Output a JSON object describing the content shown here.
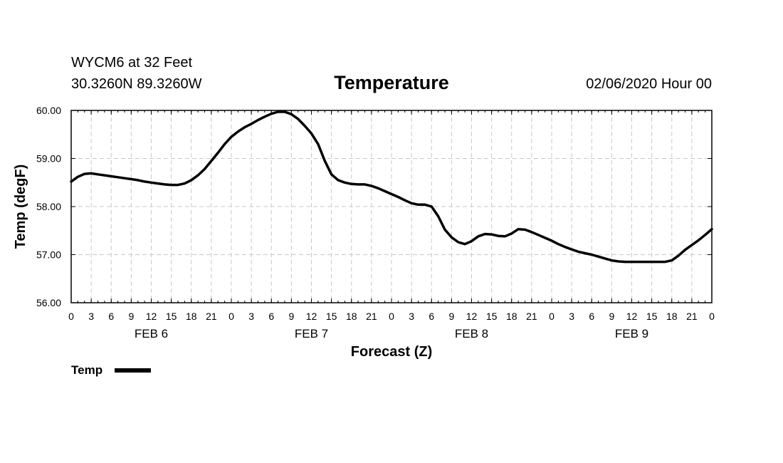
{
  "header": {
    "station": "WYCM6 at 32 Feet",
    "coords": "30.3260N 89.3260W",
    "title": "Temperature",
    "run": "02/06/2020 Hour 00"
  },
  "chart_data": {
    "type": "line",
    "title": "Temperature",
    "xlabel": "Forecast (Z)",
    "ylabel": "Temp (degF)",
    "ylim": [
      56.0,
      60.0
    ],
    "xlim": [
      0,
      96
    ],
    "grid": true,
    "y_ticks": [
      "56.00",
      "57.00",
      "58.00",
      "59.00",
      "60.00"
    ],
    "x_tick_labels": [
      "0",
      "3",
      "6",
      "9",
      "12",
      "15",
      "18",
      "21",
      "0",
      "3",
      "6",
      "9",
      "12",
      "15",
      "18",
      "21",
      "0",
      "3",
      "6",
      "9",
      "12",
      "15",
      "18",
      "21",
      "0",
      "3",
      "6",
      "9",
      "12",
      "15",
      "18",
      "21",
      "0"
    ],
    "date_labels": [
      {
        "hour": 12,
        "label": "FEB 6"
      },
      {
        "hour": 36,
        "label": "FEB 7"
      },
      {
        "hour": 60,
        "label": "FEB 8"
      },
      {
        "hour": 84,
        "label": "FEB 9"
      }
    ],
    "legend": {
      "label": "Temp",
      "placement": "bottom-left"
    },
    "series": [
      {
        "name": "Temp",
        "color": "#000000",
        "x": [
          0,
          1,
          2,
          3,
          4,
          5,
          6,
          7,
          8,
          9,
          10,
          11,
          12,
          13,
          14,
          15,
          16,
          17,
          18,
          19,
          20,
          21,
          22,
          23,
          24,
          25,
          26,
          27,
          28,
          29,
          30,
          31,
          32,
          33,
          34,
          35,
          36,
          37,
          38,
          39,
          40,
          41,
          42,
          43,
          44,
          45,
          46,
          47,
          48,
          49,
          50,
          51,
          52,
          53,
          54,
          55,
          56,
          57,
          58,
          59,
          60,
          61,
          62,
          63,
          64,
          65,
          66,
          67,
          68,
          69,
          70,
          71,
          72,
          73,
          74,
          75,
          76,
          77,
          78,
          79,
          80,
          81,
          82,
          83,
          84,
          85,
          86,
          87,
          88,
          89,
          90,
          91,
          92,
          93,
          94,
          95,
          96
        ],
        "y": [
          58.52,
          58.62,
          58.68,
          58.69,
          58.67,
          58.65,
          58.63,
          58.61,
          58.59,
          58.57,
          58.55,
          58.52,
          58.5,
          58.48,
          58.46,
          58.45,
          58.45,
          58.48,
          58.55,
          58.65,
          58.78,
          58.95,
          59.12,
          59.3,
          59.45,
          59.56,
          59.65,
          59.72,
          59.8,
          59.87,
          59.93,
          59.97,
          59.97,
          59.92,
          59.82,
          59.68,
          59.52,
          59.3,
          58.95,
          58.67,
          58.55,
          58.5,
          58.47,
          58.46,
          58.46,
          58.43,
          58.38,
          58.32,
          58.26,
          58.2,
          58.13,
          58.07,
          58.04,
          58.04,
          58.0,
          57.8,
          57.52,
          57.36,
          57.26,
          57.22,
          57.28,
          57.38,
          57.43,
          57.42,
          57.39,
          57.38,
          57.44,
          57.53,
          57.52,
          57.47,
          57.41,
          57.35,
          57.29,
          57.22,
          57.16,
          57.11,
          57.06,
          57.03,
          57.0,
          56.96,
          56.92,
          56.88,
          56.86,
          56.85,
          56.85,
          56.85,
          56.85,
          56.85,
          56.85,
          56.85,
          56.88,
          56.98,
          57.1,
          57.2,
          57.3,
          57.41,
          57.53
        ]
      }
    ]
  }
}
